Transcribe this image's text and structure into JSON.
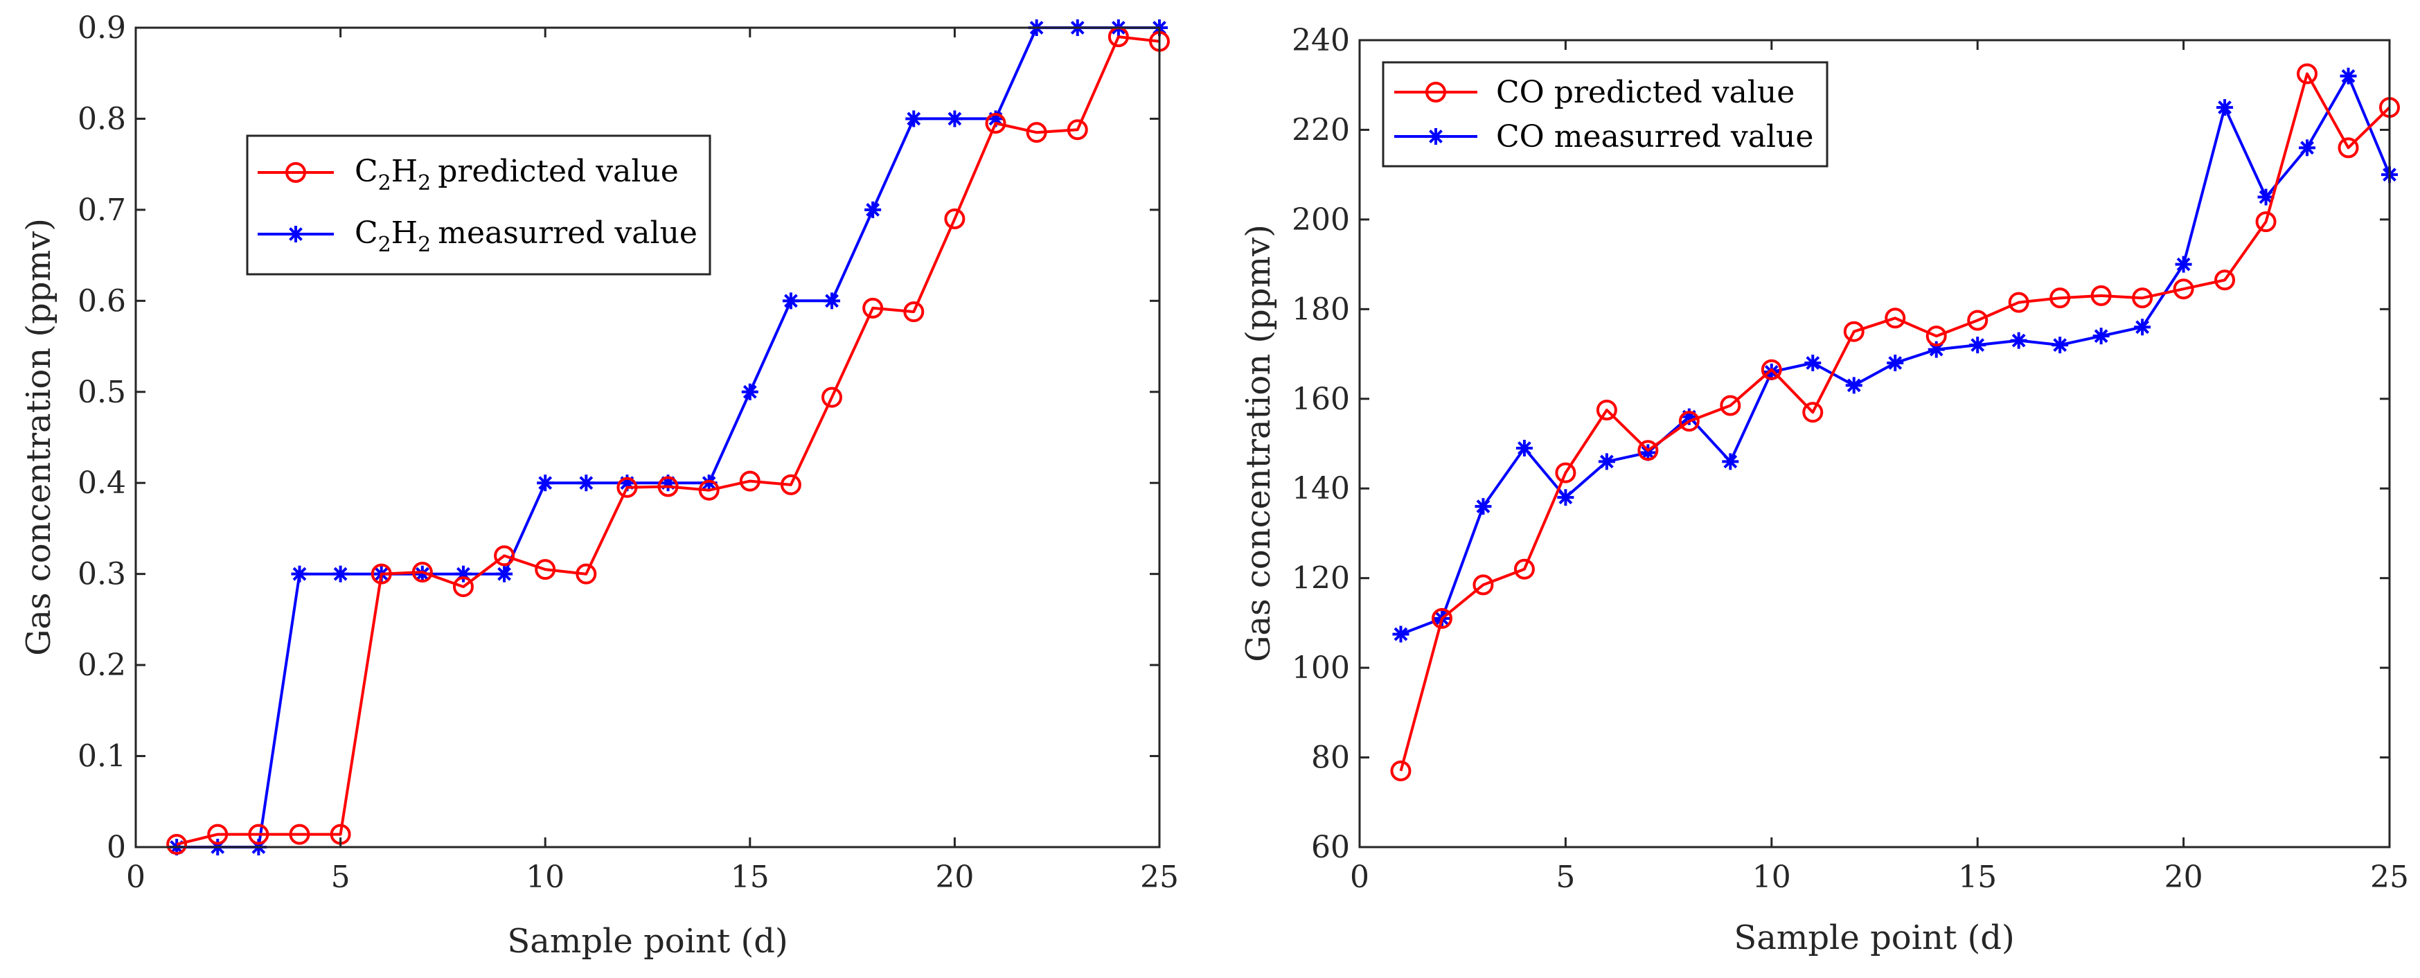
{
  "chart_data": [
    {
      "type": "line",
      "xlabel": "Sample point (d)",
      "ylabel": "Gas concentration (ppmv)",
      "xlim": [
        0,
        25
      ],
      "ylim": [
        0,
        0.9
      ],
      "xticks": [
        "0",
        "5",
        "10",
        "15",
        "20",
        "25"
      ],
      "yticks": [
        "0",
        "0.1",
        "0.2",
        "0.3",
        "0.4",
        "0.5",
        "0.6",
        "0.7",
        "0.8",
        "0.9"
      ],
      "grid": false,
      "legend_position": "upper-left",
      "legend_gas_main": "C",
      "legend_sub_1": "2",
      "legend_mid": "H",
      "legend_sub_2": "2",
      "x": [
        1,
        2,
        3,
        4,
        5,
        6,
        7,
        8,
        9,
        10,
        11,
        12,
        13,
        14,
        15,
        16,
        17,
        18,
        19,
        20,
        21,
        22,
        23,
        24,
        25
      ],
      "series": [
        {
          "name": "predicted value",
          "color": "#ff0000",
          "marker": "circle",
          "values": [
            0.003,
            0.014,
            0.014,
            0.014,
            0.014,
            0.3,
            0.302,
            0.286,
            0.32,
            0.305,
            0.3,
            0.395,
            0.396,
            0.392,
            0.402,
            0.398,
            0.494,
            0.592,
            0.588,
            0.69,
            0.795,
            0.785,
            0.788,
            0.89,
            0.885
          ]
        },
        {
          "name": "measurred value",
          "color": "#0000ff",
          "marker": "asterisk",
          "values": [
            0,
            0,
            0,
            0.3,
            0.3,
            0.3,
            0.3,
            0.3,
            0.3,
            0.4,
            0.4,
            0.4,
            0.4,
            0.4,
            0.5,
            0.6,
            0.6,
            0.7,
            0.8,
            0.8,
            0.8,
            0.9,
            0.9,
            0.9,
            0.9
          ]
        }
      ]
    },
    {
      "type": "line",
      "xlabel": "Sample point (d)",
      "ylabel": "Gas concentration (ppmv)",
      "xlim": [
        0,
        25
      ],
      "ylim": [
        60,
        240
      ],
      "xticks": [
        "0",
        "5",
        "10",
        "15",
        "20",
        "25"
      ],
      "yticks": [
        "60",
        "80",
        "100",
        "120",
        "140",
        "160",
        "180",
        "200",
        "220",
        "240"
      ],
      "grid": false,
      "legend_position": "upper-left",
      "x": [
        1,
        2,
        3,
        4,
        5,
        6,
        7,
        8,
        9,
        10,
        11,
        12,
        13,
        14,
        15,
        16,
        17,
        18,
        19,
        20,
        21,
        22,
        23,
        24,
        25
      ],
      "series": [
        {
          "name": "CO predicted value",
          "color": "#ff0000",
          "marker": "circle",
          "values": [
            77,
            111,
            118.5,
            122,
            143.5,
            157.5,
            148.5,
            155,
            158.5,
            166.5,
            157,
            175,
            178,
            174,
            177.5,
            181.5,
            182.5,
            183,
            182.5,
            184.5,
            186.5,
            199.5,
            232.5,
            216,
            225
          ]
        },
        {
          "name": "CO measurred value",
          "color": "#0000ff",
          "marker": "asterisk",
          "values": [
            107.5,
            111,
            136,
            149,
            138,
            146,
            148,
            156,
            146,
            166,
            168,
            163,
            168,
            171,
            172,
            173,
            172,
            174,
            176,
            190,
            225,
            205,
            216,
            232,
            210
          ]
        }
      ]
    }
  ]
}
